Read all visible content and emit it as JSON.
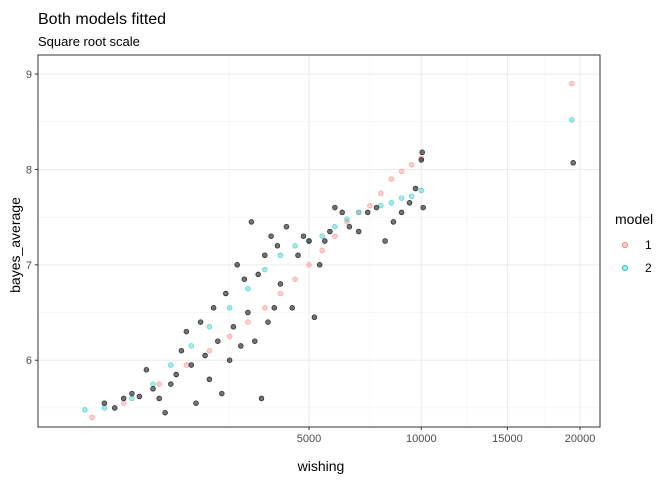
{
  "chart_data": {
    "type": "scatter",
    "title": "Both models fitted",
    "subtitle": "Square root scale",
    "xlabel": "wishing",
    "ylabel": "bayes_average",
    "x_scale": "sqrt",
    "xlim": [
      0,
      21500
    ],
    "ylim": [
      5.3,
      9.2
    ],
    "x_ticks": [
      5000,
      10000,
      15000,
      20000
    ],
    "y_ticks": [
      6,
      7,
      8,
      9
    ],
    "grid": true,
    "legend_position": "right",
    "legend_title": "model",
    "colors": {
      "observed": "#000000",
      "model_1": "#F8766D",
      "model_2": "#00BFC4"
    },
    "series": [
      {
        "name": "",
        "role": "observed",
        "points": [
          [
            300,
            5.55
          ],
          [
            400,
            5.5
          ],
          [
            500,
            5.6
          ],
          [
            600,
            5.65
          ],
          [
            700,
            5.62
          ],
          [
            800,
            5.9
          ],
          [
            900,
            5.7
          ],
          [
            1000,
            5.6
          ],
          [
            1100,
            5.45
          ],
          [
            1200,
            5.75
          ],
          [
            1300,
            5.85
          ],
          [
            1400,
            6.1
          ],
          [
            1500,
            6.3
          ],
          [
            1600,
            5.95
          ],
          [
            1700,
            5.55
          ],
          [
            1800,
            6.4
          ],
          [
            1900,
            6.05
          ],
          [
            2000,
            5.8
          ],
          [
            2100,
            6.55
          ],
          [
            2200,
            6.2
          ],
          [
            2300,
            5.65
          ],
          [
            2400,
            6.7
          ],
          [
            2500,
            6.0
          ],
          [
            2600,
            6.35
          ],
          [
            2700,
            7.0
          ],
          [
            2800,
            6.15
          ],
          [
            2900,
            6.85
          ],
          [
            3000,
            6.5
          ],
          [
            3100,
            7.45
          ],
          [
            3200,
            6.2
          ],
          [
            3300,
            6.9
          ],
          [
            3400,
            5.6
          ],
          [
            3500,
            7.1
          ],
          [
            3600,
            6.4
          ],
          [
            3700,
            7.3
          ],
          [
            3800,
            6.55
          ],
          [
            3900,
            7.2
          ],
          [
            4000,
            6.8
          ],
          [
            4200,
            7.4
          ],
          [
            4400,
            6.55
          ],
          [
            4600,
            7.1
          ],
          [
            4800,
            7.3
          ],
          [
            5000,
            7.25
          ],
          [
            5200,
            6.45
          ],
          [
            5400,
            7.0
          ],
          [
            5600,
            7.25
          ],
          [
            5800,
            7.35
          ],
          [
            6000,
            7.6
          ],
          [
            6300,
            7.55
          ],
          [
            6600,
            7.4
          ],
          [
            7000,
            7.35
          ],
          [
            7400,
            7.55
          ],
          [
            7800,
            7.6
          ],
          [
            8200,
            7.25
          ],
          [
            8600,
            7.45
          ],
          [
            9000,
            7.55
          ],
          [
            9400,
            7.65
          ],
          [
            9700,
            7.8
          ],
          [
            10000,
            8.1
          ],
          [
            10050,
            8.18
          ],
          [
            10100,
            7.6
          ],
          [
            19500,
            8.07
          ]
        ]
      },
      {
        "name": "1",
        "role": "model_1",
        "points": [
          [
            200,
            5.4
          ],
          [
            500,
            5.55
          ],
          [
            1000,
            5.75
          ],
          [
            1500,
            5.95
          ],
          [
            2000,
            6.1
          ],
          [
            2500,
            6.25
          ],
          [
            3000,
            6.4
          ],
          [
            3500,
            6.55
          ],
          [
            4000,
            6.7
          ],
          [
            4500,
            6.85
          ],
          [
            5000,
            7.0
          ],
          [
            5500,
            7.15
          ],
          [
            6000,
            7.3
          ],
          [
            6500,
            7.45
          ],
          [
            7000,
            7.55
          ],
          [
            7500,
            7.62
          ],
          [
            8000,
            7.75
          ],
          [
            8500,
            7.9
          ],
          [
            9000,
            7.98
          ],
          [
            9500,
            8.05
          ],
          [
            10000,
            8.12
          ],
          [
            19400,
            8.9
          ]
        ]
      },
      {
        "name": "2",
        "role": "model_2",
        "points": [
          [
            150,
            5.48
          ],
          [
            300,
            5.5
          ],
          [
            600,
            5.6
          ],
          [
            900,
            5.75
          ],
          [
            1200,
            5.95
          ],
          [
            1600,
            6.15
          ],
          [
            2000,
            6.35
          ],
          [
            2500,
            6.55
          ],
          [
            3000,
            6.75
          ],
          [
            3500,
            6.95
          ],
          [
            4000,
            7.1
          ],
          [
            4500,
            7.2
          ],
          [
            5000,
            7.25
          ],
          [
            5500,
            7.3
          ],
          [
            6000,
            7.4
          ],
          [
            6500,
            7.48
          ],
          [
            7000,
            7.55
          ],
          [
            8000,
            7.62
          ],
          [
            8500,
            7.65
          ],
          [
            9000,
            7.7
          ],
          [
            9500,
            7.72
          ],
          [
            10000,
            7.78
          ],
          [
            19400,
            8.52
          ]
        ]
      }
    ]
  }
}
